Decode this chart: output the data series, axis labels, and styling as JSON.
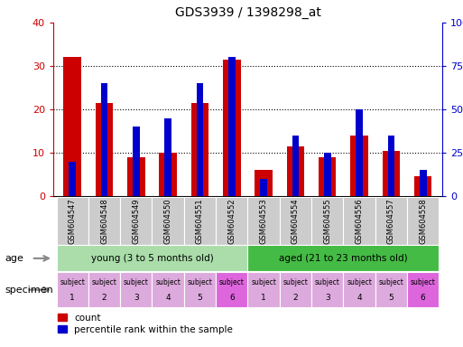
{
  "title": "GDS3939 / 1398298_at",
  "samples": [
    "GSM604547",
    "GSM604548",
    "GSM604549",
    "GSM604550",
    "GSM604551",
    "GSM604552",
    "GSM604553",
    "GSM604554",
    "GSM604555",
    "GSM604556",
    "GSM604557",
    "GSM604558"
  ],
  "count_values": [
    32,
    21.5,
    9,
    10,
    21.5,
    31.5,
    6,
    11.5,
    9,
    14,
    10.5,
    4.5
  ],
  "percentile_values_raw": [
    20,
    65,
    40,
    45,
    65,
    80,
    10,
    35,
    25,
    50,
    35,
    15
  ],
  "ylim_left": [
    0,
    40
  ],
  "ylim_right": [
    0,
    100
  ],
  "yticks_left": [
    0,
    10,
    20,
    30,
    40
  ],
  "yticks_right": [
    0,
    25,
    50,
    75,
    100
  ],
  "bar_color_red": "#cc0000",
  "bar_color_blue": "#0000cc",
  "bar_width": 0.55,
  "blue_bar_width": 0.22,
  "age_groups": [
    {
      "label": "young (3 to 5 months old)",
      "start": 0,
      "end": 6,
      "color": "#aaddaa"
    },
    {
      "label": "aged (21 to 23 months old)",
      "start": 6,
      "end": 12,
      "color": "#44bb44"
    }
  ],
  "specimen_numbers": [
    "1",
    "2",
    "3",
    "4",
    "5",
    "6",
    "1",
    "2",
    "3",
    "4",
    "5",
    "6"
  ],
  "specimen_colors": [
    "#ddaadd",
    "#ddaadd",
    "#ddaadd",
    "#ddaadd",
    "#ddaadd",
    "#dd66dd",
    "#ddaadd",
    "#ddaadd",
    "#ddaadd",
    "#ddaadd",
    "#ddaadd",
    "#dd66dd"
  ],
  "left_tick_color": "#cc0000",
  "right_tick_color": "#0000cc",
  "grid_color": "#000000",
  "sample_bg_color": "#cccccc",
  "bg_color": "#ffffff"
}
